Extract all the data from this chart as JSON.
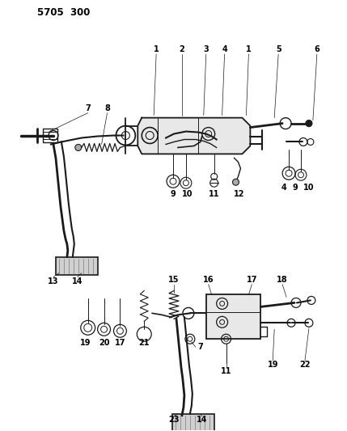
{
  "title": "5705  300",
  "bg_color": "#ffffff",
  "line_color": "#1a1a1a",
  "fig_width": 4.29,
  "fig_height": 5.33,
  "dpi": 100
}
